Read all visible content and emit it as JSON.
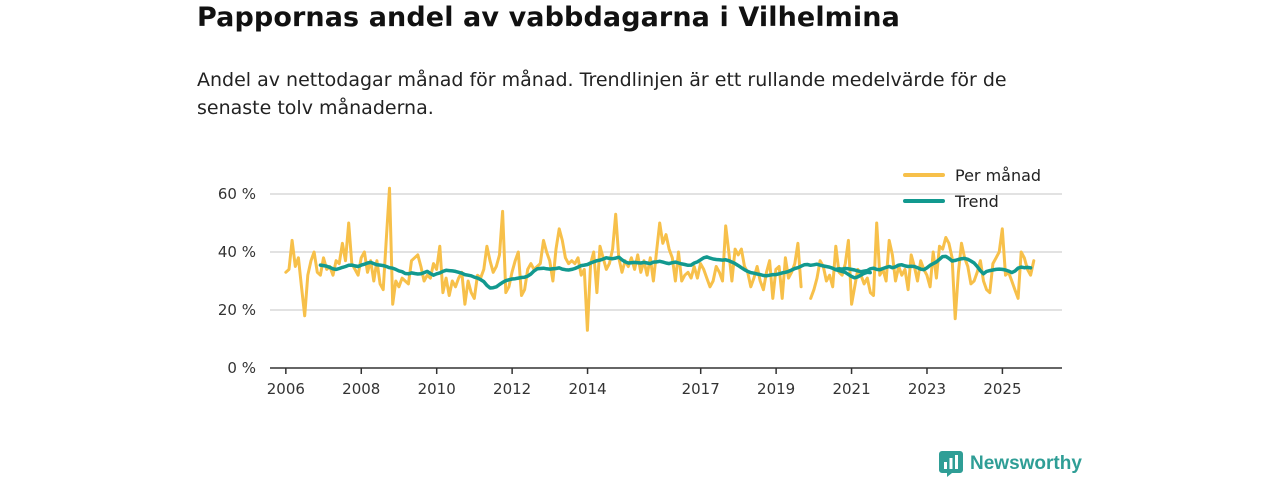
{
  "header": {
    "title": "Pappornas andel av vabbdagarna i Vilhelmina",
    "subtitle": "Andel av nettodagar månad för månad. Trendlinjen är ett rullande medelvärde för de senaste tolv månaderna."
  },
  "brand": {
    "name": "Newsworthy",
    "color": "#2f9e96"
  },
  "chart_data": {
    "type": "line",
    "title": "Pappornas andel av vabbdagarna i Vilhelmina",
    "xlabel": "",
    "ylabel": "",
    "ylim": [
      0,
      70
    ],
    "xlim": [
      2005.58,
      2026.58
    ],
    "yticks": [
      0,
      20,
      40,
      60
    ],
    "ytick_labels": [
      "0 %",
      "20 %",
      "40 %",
      "60 %"
    ],
    "xticks": [
      2006,
      2008,
      2010,
      2012,
      2014,
      2017,
      2019,
      2021,
      2023,
      2025
    ],
    "xtick_labels": [
      "2006",
      "2008",
      "2010",
      "2012",
      "2014",
      "2017",
      "2019",
      "2021",
      "2023",
      "2025"
    ],
    "grid": true,
    "legend_position": "top-right",
    "colors": {
      "monthly": "#f7c04a",
      "trend": "#12998f",
      "grid": "#d9d9d9",
      "axis": "#333333"
    },
    "series": [
      {
        "name": "Per månad",
        "segments": [
          {
            "start": 2006.0,
            "step": 0.0833,
            "values": [
              33,
              34,
              44,
              35,
              38,
              28,
              18,
              32,
              37,
              40,
              33,
              32,
              38,
              34,
              35,
              32,
              37,
              36,
              43,
              37,
              50,
              36,
              34,
              32,
              38,
              40,
              33,
              37,
              30,
              37,
              29,
              27,
              45,
              62,
              22,
              30,
              28,
              31,
              30,
              29,
              37,
              38,
              39,
              35,
              30,
              32,
              31,
              36,
              34,
              42,
              26,
              31,
              25,
              30,
              28,
              31,
              33,
              22,
              30,
              26,
              24,
              32,
              31,
              34,
              42,
              37,
              33,
              35,
              39,
              54,
              26,
              28,
              33,
              37,
              40,
              25,
              27,
              34,
              36,
              34,
              35,
              36,
              44,
              40,
              37,
              30,
              41,
              48,
              44,
              38,
              36,
              37,
              36,
              38,
              32,
              34,
              13,
              36,
              40,
              26,
              42,
              38,
              34,
              36,
              41,
              53,
              38,
              33,
              37,
              35,
              38,
              34,
              39,
              33,
              37,
              32,
              38,
              30,
              40,
              50,
              43,
              46,
              41,
              38,
              30,
              40,
              30,
              32,
              33,
              31,
              35,
              31,
              36,
              34,
              31,
              28,
              30,
              35,
              33,
              30,
              49,
              40,
              30,
              41,
              39,
              41,
              35,
              33,
              28,
              31,
              35,
              30,
              27,
              33,
              37,
              24,
              34,
              35,
              24,
              38,
              31,
              33,
              36,
              43,
              28
            ],
            "note": "2006-01 .. 2019-09"
          },
          {
            "start": 2019.917,
            "step": 0.0833,
            "values": [
              24,
              27,
              31,
              37,
              35,
              30,
              32,
              28,
              42,
              33,
              32,
              36,
              44,
              22,
              28,
              34,
              32,
              29,
              31,
              26,
              25,
              50,
              32,
              34,
              30,
              44,
              39,
              30,
              35,
              32,
              34,
              27,
              39,
              35,
              30,
              37,
              34,
              32,
              28,
              40,
              31,
              42,
              41,
              45,
              43,
              38,
              17,
              33,
              43,
              38,
              35,
              29,
              30,
              33,
              37,
              30,
              27,
              26,
              36,
              38,
              40,
              48,
              32,
              33,
              30,
              27,
              24,
              40,
              38,
              34,
              32,
              37
            ]
          }
        ]
      },
      {
        "name": "Trend",
        "segments": [
          {
            "start": 2006.917,
            "step": 0.0833,
            "values": [
              35.5,
              35.3,
              35.1,
              34.7,
              34.2,
              34.0,
              34.3,
              34.7,
              35.0,
              35.4,
              35.5,
              35.2,
              35.0,
              35.5,
              35.8,
              36.2,
              36.4,
              36.0,
              35.6,
              35.5,
              35.3,
              35.0,
              34.6,
              34.4,
              34.0,
              33.5,
              33.2,
              32.6,
              32.5,
              32.8,
              32.6,
              32.4,
              32.5,
              32.9,
              33.3,
              32.6,
              32.0,
              32.5,
              32.8,
              33.3,
              33.7,
              33.6,
              33.5,
              33.3,
              33.0,
              32.7,
              32.2,
              32.0,
              31.8,
              31.3,
              31.0,
              30.5,
              29.8,
              28.5,
              27.6,
              27.7,
              28.0,
              28.8,
              29.5,
              30.1,
              30.4,
              30.7,
              30.8,
              31.0,
              31.2,
              31.3,
              31.7,
              32.4,
              33.5,
              34.2,
              34.3,
              34.4,
              34.2,
              34.1,
              34.2,
              34.3,
              34.5,
              34.1,
              33.9,
              33.8,
              34.0,
              34.3,
              34.8,
              35.3,
              35.5,
              35.7,
              36.2,
              36.6,
              37.0,
              37.2,
              37.6,
              38.0,
              37.8,
              37.7,
              37.9,
              38.2,
              37.3,
              36.6,
              36.2,
              36.3,
              36.4,
              36.3,
              36.2,
              36.4,
              36.2,
              36.0,
              36.5,
              36.6,
              36.8,
              36.5,
              36.2,
              36.0,
              36.3,
              36.5,
              36.2,
              35.9,
              35.7,
              35.4,
              35.5,
              36.2,
              36.6,
              37.3,
              38.0,
              38.3,
              37.9,
              37.6,
              37.4,
              37.3,
              37.2,
              37.3,
              37.0,
              36.5,
              36.0,
              35.3,
              34.6,
              33.9,
              33.3,
              32.9,
              32.7,
              32.4,
              32.2,
              31.9,
              31.8,
              32.0,
              32.2,
              32.2,
              32.5,
              32.8,
              33.0,
              33.3,
              33.8,
              34.3,
              34.6,
              35.1,
              35.6,
              35.7,
              35.4,
              35.6,
              35.8,
              35.5,
              35.2,
              35.0,
              34.8,
              34.4,
              33.9,
              33.6,
              33.3,
              33.0,
              32.3,
              31.6,
              31.1,
              31.4,
              32.0,
              32.6,
              33.0,
              32.9
            ]
          },
          {
            "start": 2020.583,
            "step": 0.0833,
            "values": [
              34.0,
              34.2,
              34.1,
              34.3,
              34.2,
              34.0,
              33.8,
              33.5,
              33.2,
              33.4,
              33.6,
              34.2,
              34.4,
              34.0,
              33.9,
              34.3,
              34.7,
              35.0,
              34.6,
              34.9,
              35.5,
              35.6,
              35.2,
              35.0,
              35.1,
              35.0,
              34.6,
              34.1,
              33.9,
              34.5,
              35.4,
              36.0,
              36.6,
              37.5,
              38.4,
              38.5,
              37.8,
              36.9,
              37.1,
              37.4,
              37.7,
              37.8,
              37.5,
              36.9,
              36.2,
              35.0,
              33.6,
              32.5,
              33.3,
              33.6,
              33.8,
              34.0,
              34.1,
              34.0,
              33.8,
              33.4,
              32.9,
              33.4,
              34.4,
              34.8,
              34.6,
              34.7,
              34.5
            ]
          }
        ]
      }
    ]
  }
}
